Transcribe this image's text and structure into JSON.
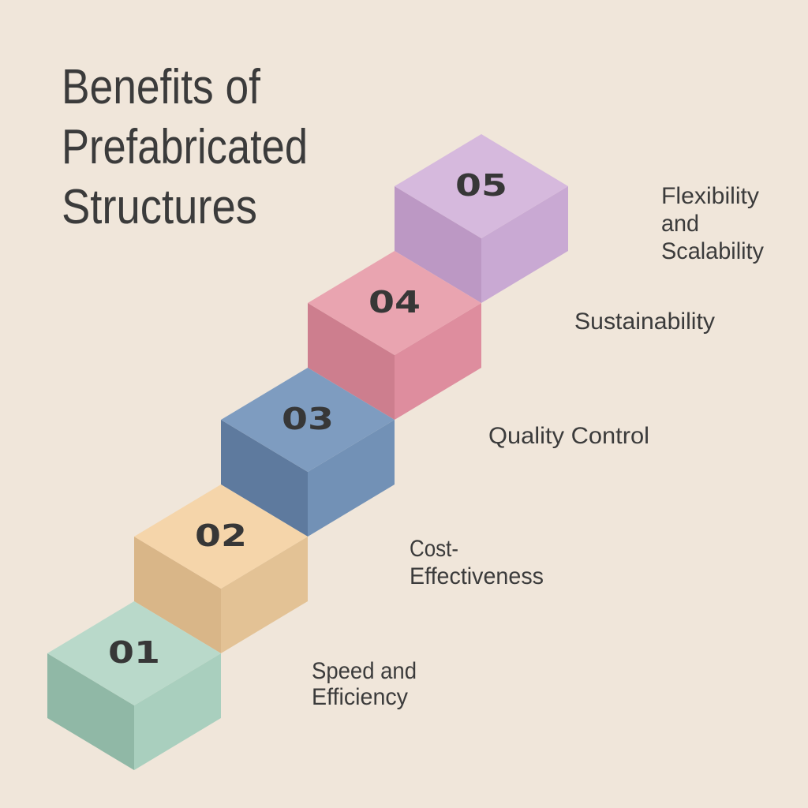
{
  "title_lines": [
    "Benefits of",
    "Prefabricated",
    "Structures"
  ],
  "colors": {
    "background": "#f0e6da",
    "text": "#3b3b3b"
  },
  "steps": [
    {
      "number": "01",
      "label_lines": [
        "Speed and",
        "Efficiency"
      ],
      "colors": {
        "top": "#b9d9ca",
        "left": "#90b8a6",
        "right": "#a9cfbe"
      }
    },
    {
      "number": "02",
      "label_lines": [
        "Cost-",
        "Effectiveness"
      ],
      "colors": {
        "top": "#f5d5aa",
        "left": "#d9b688",
        "right": "#e3c295"
      }
    },
    {
      "number": "03",
      "label_lines": [
        "Quality Control"
      ],
      "colors": {
        "top": "#7e9cc0",
        "left": "#5e7a9e",
        "right": "#7291b6"
      }
    },
    {
      "number": "04",
      "label_lines": [
        "Sustainability"
      ],
      "colors": {
        "top": "#e9a4b0",
        "left": "#cd7e8e",
        "right": "#de8d9e"
      }
    },
    {
      "number": "05",
      "label_lines": [
        "Flexibility",
        "and",
        "Scalability"
      ],
      "colors": {
        "top": "#d6b9dd",
        "left": "#bc98c4",
        "right": "#c9a9d3"
      }
    }
  ]
}
